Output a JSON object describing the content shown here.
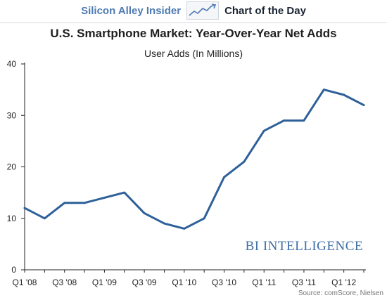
{
  "banner": {
    "brand": "Silicon Alley Insider",
    "logo_icon": "trend-chart-icon",
    "label": "Chart of the Day"
  },
  "chart_data": {
    "type": "line",
    "title": "U.S. Smartphone Market: Year-Over-Year Net Adds",
    "subtitle": "User Adds (In Millions)",
    "xlabel": "",
    "ylabel": "",
    "categories": [
      "Q1 '08",
      "Q2 '08",
      "Q3 '08",
      "Q4 '08",
      "Q1 '09",
      "Q2 '09",
      "Q3 '09",
      "Q4 '09",
      "Q1 '10",
      "Q2 '10",
      "Q3 '10",
      "Q4 '10",
      "Q1 '11",
      "Q2 '11",
      "Q3 '11",
      "Q4 '11",
      "Q1 '12",
      "Q2 '12"
    ],
    "tick_labels": [
      "Q1 '08",
      "Q3 '08",
      "Q1 '09",
      "Q3 '09",
      "Q1 '10",
      "Q3 '10",
      "Q1 '11",
      "Q3 '11",
      "Q1 '12"
    ],
    "series": [
      {
        "values": [
          12,
          10,
          13,
          13,
          14,
          15,
          11,
          9,
          8,
          10,
          18,
          21,
          27,
          29,
          29,
          35,
          34,
          32
        ]
      }
    ],
    "ylim": [
      0,
      40
    ],
    "yticks": [
      0,
      10,
      20,
      30,
      40
    ],
    "grid": false,
    "line_color": "#2e6099"
  },
  "watermark": "BI INTELLIGENCE",
  "source": "Source: comScore, Nielsen"
}
